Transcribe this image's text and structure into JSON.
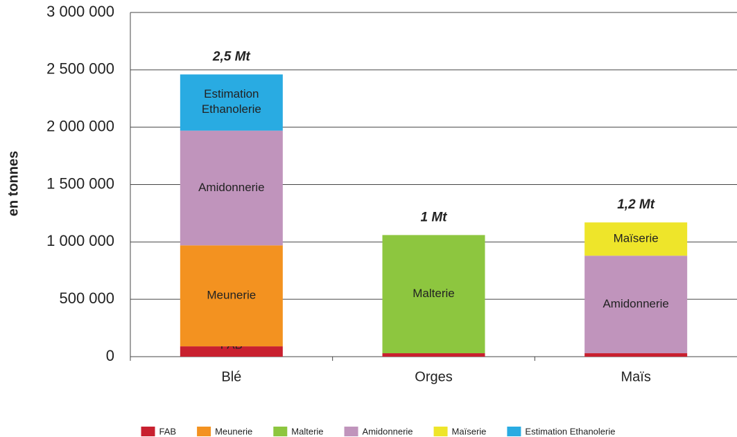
{
  "chart_data": {
    "type": "stacked_bar",
    "y_label": "en tonnes",
    "categories": [
      "Blé",
      "Orges",
      "Maïs"
    ],
    "series": [
      {
        "name": "FAB",
        "color": "#c8202f",
        "values": [
          90000,
          30000,
          30000
        ]
      },
      {
        "name": "Meunerie",
        "color": "#f39220",
        "values": [
          880000,
          null,
          null
        ]
      },
      {
        "name": "Malterie",
        "color": "#8dc63f",
        "values": [
          null,
          1030000,
          null
        ]
      },
      {
        "name": "Amidonnerie",
        "color": "#c094bc",
        "values": [
          1000000,
          null,
          850000
        ]
      },
      {
        "name": "Maïserie",
        "color": "#eee52a",
        "values": [
          null,
          null,
          290000
        ]
      },
      {
        "name": "Estimation Ethanolerie",
        "color": "#29abe2",
        "values": [
          490000,
          null,
          null
        ]
      }
    ],
    "annotations": [
      "2,5 Mt",
      "1 Mt",
      "1,2 Mt"
    ],
    "ylim": [
      0,
      3000000
    ],
    "yticks": [
      0,
      {
        "value": 500000,
        "label": "500 000"
      },
      {
        "value": 1000000,
        "label": "1 000 000"
      },
      {
        "value": 1500000,
        "label": "1 500 000"
      },
      {
        "value": 2000000,
        "label": "2 000 000"
      },
      {
        "value": 2500000,
        "label": "2 500 000"
      },
      {
        "value": 3000000,
        "label": "3 000 000"
      }
    ],
    "grid": true,
    "legend": "bottom"
  }
}
